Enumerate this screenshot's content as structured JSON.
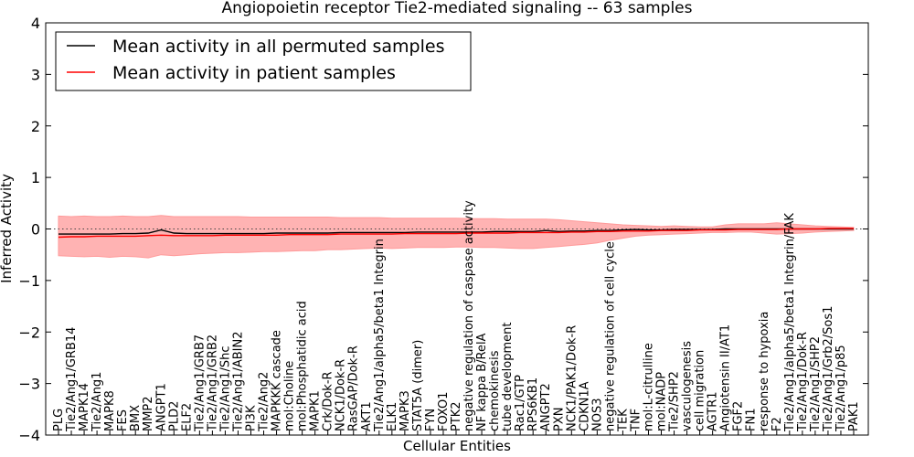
{
  "chart_data": {
    "type": "line",
    "title": "Angiopoietin receptor Tie2-mediated signaling -- 63 samples",
    "xlabel": "Cellular Entities",
    "ylabel": "Inferred Activity",
    "ylim": [
      -4,
      4
    ],
    "yticks": [
      "4",
      "3",
      "2",
      "1",
      "0",
      "−1",
      "−2",
      "−3",
      "−4"
    ],
    "grid": false,
    "zero_line": "dotted",
    "legend": {
      "placement": "top-left",
      "entries": [
        {
          "label": "Mean activity in all permuted samples",
          "color": "#000000"
        },
        {
          "label": "Mean activity in patient samples",
          "color": "#ff0000"
        }
      ]
    },
    "band_color": "#ff9a9a",
    "categories": [
      "PLG",
      "Tie2/Ang1/GRB14",
      "MAPK14",
      "Tie2/Ang1",
      "MAPK8",
      "FES",
      "BMX",
      "MMP2",
      "ANGPT1",
      "PLD2",
      "ELF2",
      "Tie2/Ang1/GRB7",
      "Tie2/Ang1/GRB2",
      "Tie2/Ang1/Shc",
      "Tie2/Ang1/ABIN2",
      "PI3K",
      "Tie2/Ang2",
      "MAPKKK cascade",
      "mol:Choline",
      "mol:Phosphatidic acid",
      "MAPK1",
      "Crk/Dok-R",
      "NCK1/Dok-R",
      "RasGAP/Dok-R",
      "AKT1",
      "Tie2/Ang1/alpha5/beta1 Integrin",
      "ELK1",
      "MAPK3",
      "STAT5A (dimer)",
      "FYN",
      "FOXO1",
      "PTK2",
      "negative regulation of caspase activity",
      "NF kappa B/RelA",
      "chemokinesis",
      "tube development",
      "Rac1/GTP",
      "RPS6KB1",
      "ANGPT2",
      "PXN",
      "NCK1/PAK1/Dok-R",
      "CDKN1A",
      "NOS3",
      "negative regulation of cell cycle",
      "TEK",
      "TNF",
      "mol:L-citrulline",
      "mol:NADP",
      "Tie2/SHP2",
      "vasculogenesis",
      "cell migration",
      "AGTR1",
      "Angiotensin II/AT1",
      "FGF2",
      "FN1",
      "response to hypoxia",
      "F2",
      "Tie2/Ang1/alpha5/beta1 Integrin/FAK",
      "Tie2/Ang1/Dok-R",
      "Tie2/Ang1/SHP2",
      "Tie2/Ang1/Grb2/Sos1",
      "Tie2/Ang1/p85",
      "PAK1"
    ],
    "series": [
      {
        "name": "Mean activity in all permuted samples",
        "color": "#000000",
        "values": [
          -0.1,
          -0.1,
          -0.1,
          -0.1,
          -0.1,
          -0.09,
          -0.09,
          -0.08,
          -0.02,
          -0.08,
          -0.09,
          -0.09,
          -0.09,
          -0.09,
          -0.09,
          -0.09,
          -0.09,
          -0.08,
          -0.08,
          -0.08,
          -0.08,
          -0.08,
          -0.07,
          -0.07,
          -0.07,
          -0.07,
          -0.07,
          -0.07,
          -0.06,
          -0.06,
          -0.06,
          -0.06,
          -0.06,
          -0.06,
          -0.05,
          -0.05,
          -0.05,
          -0.05,
          -0.03,
          -0.05,
          -0.04,
          -0.04,
          -0.03,
          -0.03,
          -0.02,
          -0.01,
          -0.02,
          -0.02,
          -0.01,
          -0.01,
          -0.01,
          -0.01,
          0.0,
          0.0,
          0.0,
          0.0,
          0.0,
          0.0,
          0.0,
          0.0,
          0.0,
          0.0,
          0.0
        ]
      },
      {
        "name": "Mean activity in patient samples",
        "color": "#ff0000",
        "values": [
          -0.16,
          -0.15,
          -0.15,
          -0.14,
          -0.14,
          -0.14,
          -0.14,
          -0.13,
          -0.12,
          -0.13,
          -0.13,
          -0.13,
          -0.13,
          -0.12,
          -0.12,
          -0.12,
          -0.12,
          -0.12,
          -0.11,
          -0.11,
          -0.11,
          -0.11,
          -0.1,
          -0.1,
          -0.1,
          -0.1,
          -0.1,
          -0.09,
          -0.09,
          -0.09,
          -0.09,
          -0.09,
          -0.08,
          -0.08,
          -0.08,
          -0.08,
          -0.07,
          -0.07,
          -0.07,
          -0.07,
          -0.06,
          -0.06,
          -0.05,
          -0.05,
          -0.04,
          -0.04,
          -0.04,
          -0.03,
          -0.03,
          -0.03,
          -0.02,
          -0.02,
          -0.02,
          -0.01,
          -0.01,
          -0.01,
          -0.01,
          0.0,
          0.0,
          0.0,
          0.01,
          0.01,
          0.01
        ]
      },
      {
        "name": "band upper",
        "color": "#ff9a9a",
        "values": [
          0.25,
          0.24,
          0.25,
          0.24,
          0.24,
          0.25,
          0.24,
          0.24,
          0.26,
          0.24,
          0.24,
          0.24,
          0.24,
          0.24,
          0.24,
          0.23,
          0.23,
          0.23,
          0.23,
          0.23,
          0.23,
          0.23,
          0.22,
          0.22,
          0.22,
          0.22,
          0.21,
          0.21,
          0.21,
          0.21,
          0.21,
          0.21,
          0.2,
          0.2,
          0.2,
          0.19,
          0.19,
          0.19,
          0.19,
          0.18,
          0.16,
          0.14,
          0.12,
          0.1,
          0.08,
          0.07,
          0.06,
          0.05,
          0.06,
          0.05,
          0.04,
          0.04,
          0.08,
          0.1,
          0.1,
          0.1,
          0.12,
          0.1,
          0.08,
          0.06,
          0.05,
          0.04,
          0.03
        ]
      },
      {
        "name": "band lower",
        "color": "#ff9a9a",
        "values": [
          -0.52,
          -0.53,
          -0.54,
          -0.53,
          -0.55,
          -0.53,
          -0.54,
          -0.56,
          -0.5,
          -0.52,
          -0.5,
          -0.48,
          -0.47,
          -0.46,
          -0.46,
          -0.45,
          -0.44,
          -0.44,
          -0.43,
          -0.42,
          -0.42,
          -0.4,
          -0.4,
          -0.39,
          -0.38,
          -0.37,
          -0.38,
          -0.37,
          -0.36,
          -0.36,
          -0.36,
          -0.35,
          -0.35,
          -0.36,
          -0.36,
          -0.37,
          -0.38,
          -0.38,
          -0.36,
          -0.34,
          -0.32,
          -0.3,
          -0.27,
          -0.22,
          -0.18,
          -0.14,
          -0.12,
          -0.11,
          -0.1,
          -0.09,
          -0.08,
          -0.07,
          -0.07,
          -0.06,
          -0.06,
          -0.08,
          -0.1,
          -0.09,
          -0.08,
          -0.06,
          -0.05,
          -0.04,
          -0.03
        ]
      }
    ]
  }
}
